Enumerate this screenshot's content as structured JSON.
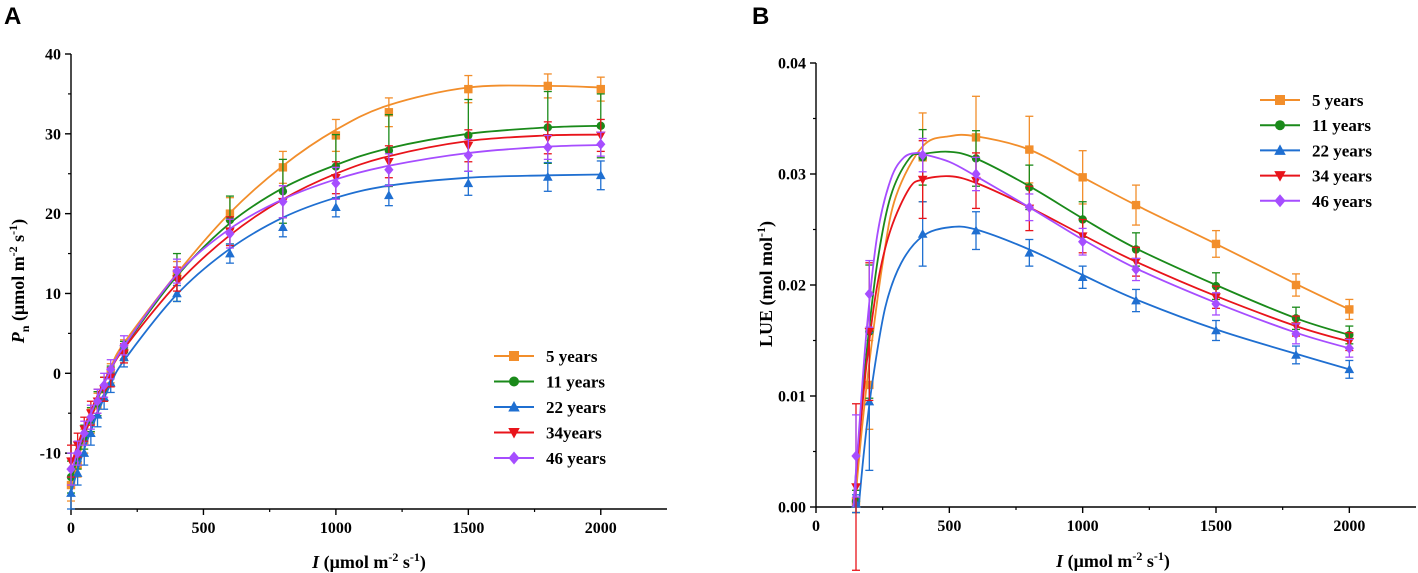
{
  "chart_data": [
    {
      "type": "line",
      "panel_label": "A",
      "title": "",
      "xlabel": {
        "prefix": "I",
        "text": " (μmol m",
        "sup1": "-2",
        "mid": " s",
        "sup2": "-1",
        "suffix": ")"
      },
      "ylabel": {
        "prefix": "P",
        "sub": "n",
        "text": " (μmol m",
        "sup1": "-2",
        "mid": " s",
        "sup2": "-1",
        "suffix": ")"
      },
      "xlim": [
        0,
        2250
      ],
      "ylim": [
        -17,
        40
      ],
      "xticks": [
        0,
        500,
        1000,
        1500,
        2000
      ],
      "xtick_labels": [
        "0",
        "500",
        "1000",
        "1500",
        "2000"
      ],
      "yticks": [
        -10,
        0,
        10,
        20,
        30,
        40
      ],
      "ytick_labels": [
        "-10",
        "0",
        "10",
        "20",
        "30",
        "40"
      ],
      "legend_position": "lower-right",
      "x": [
        0,
        25,
        50,
        75,
        100,
        125,
        150,
        200,
        400,
        600,
        800,
        1000,
        1200,
        1500,
        1800,
        2000
      ],
      "series": [
        {
          "name": "5 years",
          "color": "#f28e2b",
          "marker": "square",
          "values": [
            -14,
            -11.5,
            -8.5,
            -6,
            -4,
            -2,
            0,
            3,
            12.5,
            20,
            25.8,
            29.8,
            32.7,
            35.6,
            36,
            35.6
          ],
          "errors": [
            2,
            1.5,
            1.5,
            1.5,
            1.5,
            1.5,
            1.2,
            1.2,
            1.5,
            2,
            2,
            2,
            1.8,
            1.7,
            1.5,
            1.5
          ],
          "fit": [
            -14.5,
            -11.1,
            -8.1,
            -5.5,
            -3.2,
            -1.1,
            0.7,
            3.8,
            12.5,
            20.1,
            26,
            30.5,
            33.6,
            35.8,
            36,
            35.8
          ]
        },
        {
          "name": "11 years",
          "color": "#1a8a1a",
          "marker": "circle",
          "values": [
            -13,
            -10.5,
            -8,
            -5.8,
            -3.8,
            -2,
            -0.3,
            2.8,
            12,
            19.2,
            22.8,
            25.9,
            27.9,
            29.8,
            30.8,
            31
          ],
          "errors": [
            2,
            1.5,
            1.5,
            1.5,
            1.5,
            1.5,
            1.2,
            1.2,
            3,
            3,
            4,
            4,
            4.5,
            4.5,
            4.5,
            4
          ],
          "fit": [
            -13.5,
            -10.5,
            -7.8,
            -5.4,
            -3.3,
            -1.3,
            0.4,
            3.3,
            12.2,
            18.8,
            23.2,
            26.1,
            28.2,
            30,
            30.8,
            31
          ]
        },
        {
          "name": "22 years",
          "color": "#1f6fd1",
          "marker": "triangle",
          "values": [
            -15,
            -12.5,
            -10,
            -7.5,
            -5.2,
            -3,
            -1.2,
            2,
            10,
            15,
            18.3,
            20.8,
            22.3,
            23.8,
            24.6,
            24.8
          ],
          "errors": [
            2,
            1.5,
            1.5,
            1.5,
            1.5,
            1.5,
            1.2,
            1.2,
            1,
            1.2,
            1.2,
            1.2,
            1.3,
            1.5,
            1.8,
            1.8
          ],
          "fit": [
            -15,
            -12.1,
            -9.5,
            -7.2,
            -5,
            -3.1,
            -1.4,
            1.6,
            9.9,
            15.6,
            19.5,
            22,
            23.5,
            24.5,
            24.8,
            24.9
          ]
        },
        {
          "name": "34years",
          "color": "#e8141b",
          "marker": "triangle-down",
          "values": [
            -11,
            -9,
            -7,
            -5,
            -3.5,
            -2,
            -0.5,
            2.5,
            11.8,
            17.8,
            21.5,
            24.5,
            26.5,
            28.5,
            29.5,
            29.8
          ],
          "errors": [
            2,
            1.5,
            1.5,
            1.5,
            1.5,
            1.5,
            1.2,
            1.2,
            1.5,
            1.8,
            2,
            2,
            2,
            2,
            2,
            2
          ],
          "fit": [
            -11.5,
            -9,
            -6.7,
            -4.7,
            -2.8,
            -1.1,
            0.4,
            3.1,
            11.2,
            17.3,
            21.8,
            25,
            27.2,
            29.1,
            29.8,
            29.9
          ]
        },
        {
          "name": "46 years",
          "color": "#a64dff",
          "marker": "diamond",
          "values": [
            -12,
            -10,
            -7.5,
            -5.5,
            -3.5,
            -1.5,
            0.5,
            3.5,
            12.8,
            17.5,
            21.5,
            23.8,
            25.5,
            27.3,
            28.3,
            28.7
          ],
          "errors": [
            2,
            1.5,
            1.5,
            1.5,
            1.5,
            1.5,
            1.2,
            1.2,
            1.5,
            1.8,
            2,
            2,
            2,
            2,
            1.5,
            1.5
          ],
          "fit": [
            -12.5,
            -9.8,
            -7.3,
            -5.1,
            -3.1,
            -1.3,
            0.4,
            3.4,
            12.4,
            18.1,
            21.8,
            24.3,
            26,
            27.6,
            28.4,
            28.6
          ]
        }
      ]
    },
    {
      "type": "line",
      "panel_label": "B",
      "title": "",
      "xlabel": {
        "prefix": "I",
        "text": " (μmol m",
        "sup1": "-2",
        "mid": " s",
        "sup2": "-1",
        "suffix": ")"
      },
      "ylabel": {
        "text": "LUE (mol mol",
        "sup1": "-1",
        "suffix": ")"
      },
      "xlim": [
        0,
        2250
      ],
      "ylim": [
        0,
        0.04
      ],
      "xticks": [
        0,
        500,
        1000,
        1500,
        2000
      ],
      "xtick_labels": [
        "0",
        "500",
        "1000",
        "1500",
        "2000"
      ],
      "yticks": [
        0,
        0.01,
        0.02,
        0.03,
        0.04
      ],
      "ytick_labels": [
        "0.00",
        "0.01",
        "0.02",
        "0.03",
        "0.04"
      ],
      "legend_position": "top-right",
      "x": [
        150,
        200,
        400,
        600,
        800,
        1000,
        1200,
        1500,
        1800,
        2000
      ],
      "series": [
        {
          "name": "5 years",
          "color": "#f28e2b",
          "marker": "square",
          "values": [
            0.0005,
            0.011,
            0.0315,
            0.0333,
            0.0322,
            0.0297,
            0.0272,
            0.0237,
            0.02,
            0.0178
          ],
          "errors": [
            0.001,
            0.004,
            0.004,
            0.0037,
            0.003,
            0.0024,
            0.0018,
            0.0012,
            0.001,
            0.0009
          ],
          "fit_x": [
            145,
            170,
            200,
            250,
            300,
            400,
            500,
            600,
            800,
            1000,
            1200,
            1500,
            1800,
            2000
          ],
          "fit": [
            0,
            0.0065,
            0.013,
            0.022,
            0.028,
            0.0325,
            0.0334,
            0.0334,
            0.0322,
            0.0297,
            0.0272,
            0.0237,
            0.0201,
            0.0178
          ]
        },
        {
          "name": "11 years",
          "color": "#1a8a1a",
          "marker": "circle",
          "values": [
            0.0005,
            0.0158,
            0.0315,
            0.0314,
            0.0288,
            0.0259,
            0.0232,
            0.0199,
            0.017,
            0.0155
          ],
          "errors": [
            0.001,
            0.006,
            0.0025,
            0.0025,
            0.002,
            0.0016,
            0.0015,
            0.0012,
            0.001,
            0.0008
          ],
          "fit_x": [
            140,
            160,
            190,
            230,
            280,
            350,
            400,
            500,
            600,
            800,
            1000,
            1200,
            1500,
            1800,
            2000
          ],
          "fit": [
            0,
            0.006,
            0.014,
            0.022,
            0.028,
            0.0314,
            0.0318,
            0.032,
            0.0314,
            0.0289,
            0.026,
            0.0233,
            0.02,
            0.017,
            0.0155
          ]
        },
        {
          "name": "22 years",
          "color": "#1f6fd1",
          "marker": "triangle",
          "values": [
            0.0003,
            0.0095,
            0.0246,
            0.0249,
            0.0229,
            0.0207,
            0.0186,
            0.0159,
            0.0137,
            0.0124
          ],
          "errors": [
            0.0008,
            0.0062,
            0.0029,
            0.0017,
            0.0012,
            0.001,
            0.001,
            0.0009,
            0.0008,
            0.0008
          ],
          "fit_x": [
            160,
            180,
            210,
            260,
            320,
            400,
            500,
            600,
            800,
            1000,
            1200,
            1500,
            1800,
            2000
          ],
          "fit": [
            0,
            0.005,
            0.011,
            0.018,
            0.022,
            0.0244,
            0.0252,
            0.025,
            0.0232,
            0.0209,
            0.0187,
            0.016,
            0.0138,
            0.0124
          ]
        },
        {
          "name": "34 years",
          "color": "#e8141b",
          "marker": "triangle-down",
          "values": [
            0.0018,
            0.0158,
            0.0295,
            0.0294,
            0.0269,
            0.0244,
            0.0221,
            0.0189,
            0.0163,
            0.0149
          ],
          "errors": [
            0.0075,
            0.0062,
            0.0035,
            0.0025,
            0.002,
            0.0015,
            0.0013,
            0.001,
            0.0009,
            0.0008
          ],
          "fit_x": [
            140,
            160,
            190,
            230,
            280,
            350,
            400,
            500,
            600,
            800,
            1000,
            1200,
            1500,
            1800,
            2000
          ],
          "fit": [
            0,
            0.0055,
            0.013,
            0.02,
            0.025,
            0.0287,
            0.0295,
            0.0298,
            0.0292,
            0.027,
            0.0245,
            0.0221,
            0.019,
            0.0163,
            0.0149
          ]
        },
        {
          "name": "46 years",
          "color": "#a64dff",
          "marker": "diamond",
          "values": [
            0.0046,
            0.0192,
            0.0317,
            0.03,
            0.027,
            0.0239,
            0.0214,
            0.0183,
            0.0156,
            0.0143
          ],
          "errors": [
            0.0037,
            0.003,
            0.0015,
            0.0015,
            0.0012,
            0.0012,
            0.001,
            0.001,
            0.0009,
            0.0008
          ],
          "fit_x": [
            140,
            160,
            190,
            230,
            280,
            330,
            380,
            400,
            500,
            600,
            800,
            1000,
            1200,
            1500,
            1800,
            2000
          ],
          "fit": [
            0,
            0.0065,
            0.016,
            0.0245,
            0.0295,
            0.0315,
            0.0319,
            0.0318,
            0.0311,
            0.0298,
            0.027,
            0.0241,
            0.0215,
            0.0184,
            0.0157,
            0.0143
          ]
        }
      ]
    }
  ]
}
